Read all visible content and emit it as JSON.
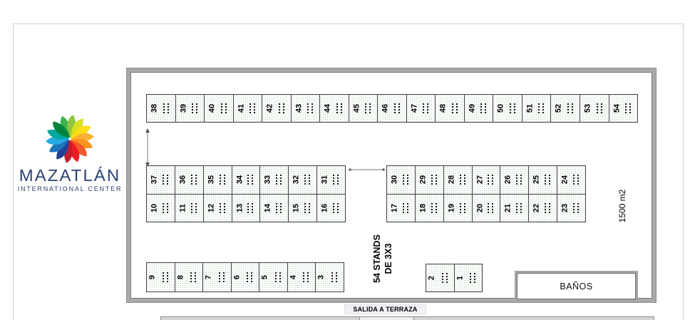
{
  "logo": {
    "title": "MAZATLÁN",
    "subtitle": "INTERNATIONAL CENTER",
    "text_color": "#2a4270",
    "petal_colors": [
      "#39b54a",
      "#8dc63f",
      "#d7df23",
      "#ffde17",
      "#fbb034",
      "#f7941d",
      "#f15a29",
      "#ed1c24",
      "#be1e2d",
      "#21409a",
      "#1c75bc",
      "#27aae1",
      "#00a99d",
      "#00833e"
    ]
  },
  "plan": {
    "area_label": "1500 m2",
    "stands_note_line1": "54 STANDS",
    "stands_note_line2": "DE 3X3",
    "restrooms_label": "BAÑOS",
    "exit_label": "SALIDA A TERRAZA",
    "rows": {
      "top": [
        "38",
        "39",
        "40",
        "41",
        "42",
        "43",
        "44",
        "45",
        "46",
        "47",
        "48",
        "49",
        "50",
        "51",
        "52",
        "53",
        "54"
      ],
      "mid_left_top": [
        "37",
        "36",
        "35",
        "34",
        "33",
        "32",
        "31"
      ],
      "mid_left_bottom": [
        "10",
        "11",
        "12",
        "13",
        "14",
        "15",
        "16"
      ],
      "mid_right_top": [
        "30",
        "29",
        "28",
        "27",
        "26",
        "25",
        "24"
      ],
      "mid_right_bottom": [
        "17",
        "18",
        "19",
        "20",
        "21",
        "22",
        "23"
      ],
      "bottom_left": [
        "9",
        "8",
        "7",
        "6",
        "5",
        "4",
        "3"
      ],
      "bottom_small": [
        "2",
        "1"
      ]
    }
  }
}
